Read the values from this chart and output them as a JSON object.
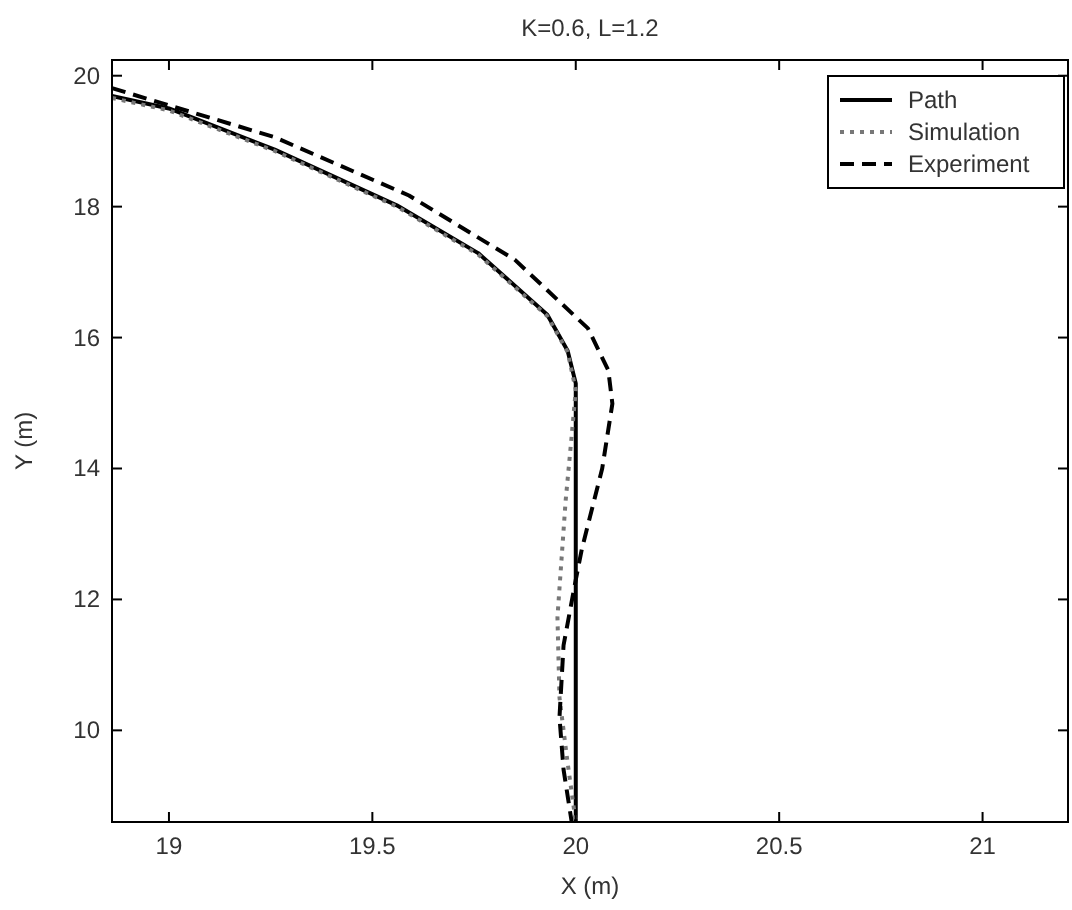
{
  "chart_data": {
    "type": "line",
    "title": "K=0.6, L=1.2",
    "xlabel": "X (m)",
    "ylabel": "Y (m)",
    "xlim": [
      18.86,
      21.21
    ],
    "ylim": [
      8.6,
      20.24
    ],
    "xticks": [
      19,
      19.5,
      20,
      20.5,
      21
    ],
    "yticks": [
      10,
      12,
      14,
      16,
      18,
      20
    ],
    "grid": false,
    "legend": "top right",
    "series": [
      {
        "name": "Path",
        "color": "#000000",
        "line_style": "solid",
        "x": [
          18.86,
          19.0,
          19.26,
          19.56,
          19.76,
          19.93,
          19.98,
          20.0,
          20.0,
          20.0,
          20.0
        ],
        "values": [
          19.69,
          19.5,
          18.87,
          18.02,
          17.29,
          16.35,
          15.8,
          15.3,
          14.0,
          12.0,
          8.6
        ]
      },
      {
        "name": "Simulation",
        "color": "#777777",
        "line_style": "dotted",
        "x": [
          18.86,
          19.0,
          19.26,
          19.56,
          19.76,
          19.93,
          19.98,
          20.0,
          19.99,
          19.975,
          19.955,
          19.96,
          19.98,
          20.0
        ],
        "values": [
          19.66,
          19.47,
          18.85,
          18.0,
          17.27,
          16.33,
          15.78,
          15.2,
          14.5,
          13.5,
          11.73,
          10.5,
          9.5,
          8.6
        ]
      },
      {
        "name": "Experiment",
        "color": "#000000",
        "line_style": "dashed",
        "x": [
          18.86,
          19.26,
          19.59,
          19.85,
          20.03,
          20.08,
          20.09,
          20.065,
          20.015,
          20.0,
          19.97,
          19.96,
          19.97,
          19.99
        ],
        "values": [
          19.81,
          19.06,
          18.17,
          17.19,
          16.14,
          15.5,
          14.99,
          14.0,
          12.77,
          12.3,
          11.3,
          10.2,
          9.4,
          8.6
        ]
      }
    ]
  }
}
